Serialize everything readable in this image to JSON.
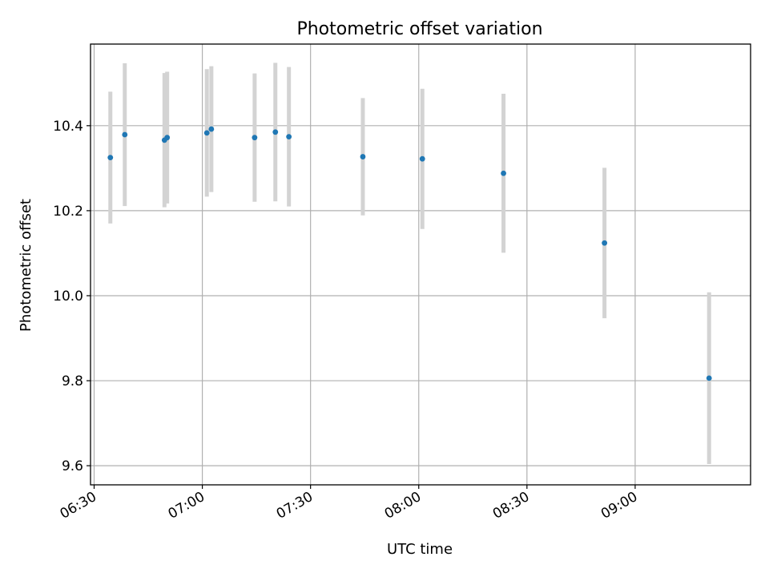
{
  "chart_data": {
    "type": "scatter",
    "title": "Photometric offset variation",
    "xlabel": "UTC time",
    "ylabel": "Photometric offset",
    "x_ticks": [
      "06:30",
      "07:00",
      "07:30",
      "08:00",
      "08:30",
      "09:00"
    ],
    "y_ticks": [
      "9.6",
      "9.8",
      "10.0",
      "10.2",
      "10.4"
    ],
    "xlim": [
      "06:29",
      "09:32"
    ],
    "ylim": [
      9.555,
      10.592
    ],
    "grid": true,
    "colors": {
      "points": "#1f77b4",
      "errorbars": "#d3d3d3",
      "grid": "#b0b0b0"
    },
    "series": [
      {
        "points": [
          {
            "x": "06:34:30",
            "y": 10.325,
            "err": 0.155
          },
          {
            "x": "06:38:30",
            "y": 10.379,
            "err": 0.168
          },
          {
            "x": "06:49:30",
            "y": 10.366,
            "err": 0.158
          },
          {
            "x": "06:50:15",
            "y": 10.372,
            "err": 0.155
          },
          {
            "x": "07:01:15",
            "y": 10.383,
            "err": 0.15
          },
          {
            "x": "07:02:30",
            "y": 10.392,
            "err": 0.148
          },
          {
            "x": "07:14:30",
            "y": 10.372,
            "err": 0.151
          },
          {
            "x": "07:20:15",
            "y": 10.385,
            "err": 0.163
          },
          {
            "x": "07:24:00",
            "y": 10.374,
            "err": 0.164
          },
          {
            "x": "07:44:30",
            "y": 10.327,
            "err": 0.138
          },
          {
            "x": "08:01:00",
            "y": 10.322,
            "err": 0.165
          },
          {
            "x": "08:23:30",
            "y": 10.288,
            "err": 0.187
          },
          {
            "x": "08:51:30",
            "y": 10.124,
            "err": 0.177
          },
          {
            "x": "09:20:30",
            "y": 9.806,
            "err": 0.202
          }
        ]
      }
    ]
  }
}
